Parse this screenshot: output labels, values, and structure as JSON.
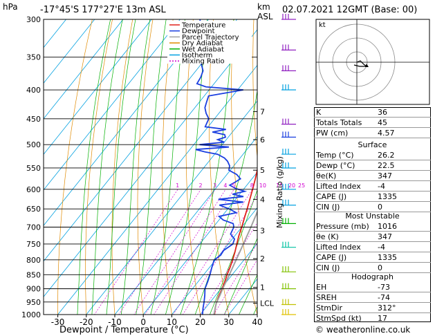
{
  "header": {
    "hpa_label": "hPa",
    "location": "-17°45'S  177°27'E  13m  ASL",
    "km_label": "km",
    "asl_label": "ASL",
    "datetime": "02.07.2021  12GMT  (Base: 00)"
  },
  "xlabel": "Dewpoint / Temperature (°C)",
  "mixing_axis_label": "Mixing Ratio (g/kg)",
  "legend": [
    {
      "label": "Temperature",
      "color": "#e0201a",
      "dash": ""
    },
    {
      "label": "Dewpoint",
      "color": "#1a3ee0",
      "dash": ""
    },
    {
      "label": "Parcel Trajectory",
      "color": "#a0a0a0",
      "dash": ""
    },
    {
      "label": "Dry Adiabat",
      "color": "#e08a00",
      "dash": ""
    },
    {
      "label": "Wet Adiabat",
      "color": "#00b000",
      "dash": ""
    },
    {
      "label": "Isotherm",
      "color": "#00a0e0",
      "dash": ""
    },
    {
      "label": "Mixing Ratio",
      "color": "#d000d0",
      "dash": "2,2"
    }
  ],
  "hodograph": {
    "unit_label": "kt"
  },
  "indices": [
    {
      "label": "K",
      "value": "36"
    },
    {
      "label": "Totals Totals",
      "value": "45"
    },
    {
      "label": "PW (cm)",
      "value": "4.57"
    }
  ],
  "surface": {
    "title": "Surface",
    "rows": [
      {
        "label": "Temp (°C)",
        "value": "26.2"
      },
      {
        "label": "Dewp (°C)",
        "value": "22.5"
      },
      {
        "label": "θe(K)",
        "value": "347"
      },
      {
        "label": "Lifted Index",
        "value": "-4"
      },
      {
        "label": "CAPE (J)",
        "value": "1335"
      },
      {
        "label": "CIN (J)",
        "value": "0"
      }
    ]
  },
  "most_unstable": {
    "title": "Most Unstable",
    "rows": [
      {
        "label": "Pressure (mb)",
        "value": "1016"
      },
      {
        "label": "θe (K)",
        "value": "347"
      },
      {
        "label": "Lifted Index",
        "value": "-4"
      },
      {
        "label": "CAPE (J)",
        "value": "1335"
      },
      {
        "label": "CIN (J)",
        "value": "0"
      }
    ]
  },
  "hodograph_table": {
    "title": "Hodograph",
    "rows": [
      {
        "label": "EH",
        "value": "-73"
      },
      {
        "label": "SREH",
        "value": "-74"
      },
      {
        "label": "StmDir",
        "value": "312°"
      },
      {
        "label": "StmSpd (kt)",
        "value": "17"
      }
    ]
  },
  "copyright": "© weatheronline.co.uk",
  "chart_data": {
    "type": "line",
    "title": "-17°45'S  177°27'E  13m  ASL",
    "xlabel": "Dewpoint / Temperature (°C)",
    "ylabel": "hPa",
    "xlim": [
      -35,
      40
    ],
    "ylim": [
      1000,
      300
    ],
    "x_ticks": [
      -30,
      -20,
      -10,
      0,
      10,
      20,
      30,
      40
    ],
    "pressure_ticks": [
      300,
      350,
      400,
      450,
      500,
      550,
      600,
      650,
      700,
      750,
      800,
      850,
      900,
      950,
      1000
    ],
    "km_ticks": [
      {
        "label": "7",
        "p": 437
      },
      {
        "label": "6",
        "p": 490
      },
      {
        "label": "5",
        "p": 555
      },
      {
        "label": "4",
        "p": 625
      },
      {
        "label": "3",
        "p": 710
      },
      {
        "label": "2",
        "p": 796
      },
      {
        "label": "1",
        "p": 895
      },
      {
        "label": "LCL",
        "p": 955
      }
    ],
    "mixing_ratio_labels": [
      "1",
      "2",
      "3",
      "4",
      "5",
      "8",
      "10",
      "15",
      "20",
      "25"
    ],
    "series": [
      {
        "name": "Temperature",
        "color": "#e0201a",
        "p": [
          1016,
          1000,
          970,
          950,
          925,
          900,
          875,
          850,
          825,
          800,
          775,
          750,
          725,
          700,
          675,
          650,
          625,
          600,
          575,
          550,
          525,
          500,
          475,
          450,
          425,
          400,
          375,
          350,
          325,
          300
        ],
        "t": [
          26.2,
          25.0,
          23.2,
          22.2,
          21.2,
          20.4,
          19.4,
          18.2,
          17.2,
          16.0,
          14.6,
          13.0,
          11.4,
          10.0,
          8.4,
          6.8,
          5.0,
          3.2,
          1.2,
          -1.0,
          -3.4,
          -6.0,
          -8.8,
          -11.6,
          -14.8,
          -18.2,
          -22.2,
          -26.4,
          -31.2,
          -36.5
        ]
      },
      {
        "name": "Dewpoint",
        "color": "#1a3ee0",
        "p": [
          1016,
          1000,
          975,
          950,
          925,
          900,
          875,
          850,
          825,
          800,
          785,
          770,
          750,
          735,
          720,
          700,
          690,
          680,
          670,
          660,
          650,
          640,
          632,
          625,
          618,
          612,
          605,
          598,
          590,
          583,
          575,
          565,
          555,
          545,
          535,
          528,
          520,
          515,
          510,
          505,
          500,
          495,
          490,
          485,
          480,
          475,
          470,
          465,
          458,
          450,
          440,
          430,
          420,
          410,
          400,
          395,
          390,
          380,
          370,
          360,
          350,
          325,
          300
        ],
        "t": [
          22.5,
          20.8,
          19.2,
          17.8,
          16.2,
          14.4,
          13.4,
          12.2,
          10.8,
          9.5,
          10.5,
          10.2,
          11.6,
          10.8,
          8.0,
          7.2,
          6.0,
          1.5,
          -1.0,
          4.0,
          0.5,
          -4.0,
          3.5,
          -6.0,
          2.0,
          -2.5,
          1.0,
          -3.0,
          -6.0,
          -5.0,
          -4.0,
          -6.5,
          -10.5,
          -11.5,
          -13.5,
          -15.5,
          -19.0,
          -24.0,
          -28.0,
          -17.0,
          -28.0,
          -20.0,
          -23.0,
          -21.0,
          -22.0,
          -27.0,
          -23.0,
          -31.0,
          -31.5,
          -32.0,
          -34.5,
          -36.5,
          -37.5,
          -38.5,
          -28.0,
          -42.0,
          -46.0,
          -46.5,
          -47.5,
          -50.0,
          -53.0,
          -57.0,
          -63.0
        ]
      },
      {
        "name": "Parcel Trajectory",
        "color": "#a0a0a0",
        "p": [
          1016,
          1000,
          955,
          925,
          900,
          850,
          800,
          750,
          700,
          650,
          600,
          550,
          500,
          450,
          400,
          350,
          300
        ],
        "t": [
          26.2,
          24.8,
          22.4,
          21.5,
          20.6,
          19.0,
          17.2,
          15.3,
          13.2,
          10.8,
          8.0,
          4.8,
          0.8,
          -4.0,
          -9.8,
          -17.0,
          -26.0
        ]
      }
    ]
  }
}
